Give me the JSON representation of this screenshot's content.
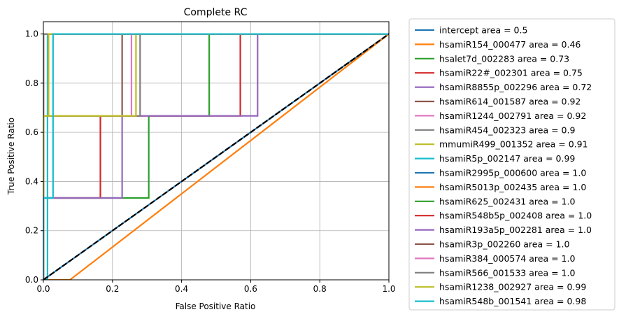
{
  "chart_data": {
    "type": "line",
    "title": "Complete RC",
    "xlabel": "False Positive Ratio",
    "ylabel": "True Positive Ratio",
    "xlim": [
      0,
      1
    ],
    "ylim": [
      0,
      1.05
    ],
    "xticks": [
      0,
      0.2,
      0.4,
      0.6,
      0.8,
      1
    ],
    "xtick_labels": [
      "0.0",
      "0.2",
      "0.4",
      "0.6",
      "0.8",
      "1.0"
    ],
    "yticks": [
      0,
      0.2,
      0.4,
      0.6,
      0.8,
      1
    ],
    "ytick_labels": [
      "0.0",
      "0.2",
      "0.4",
      "0.6",
      "0.8",
      "1.0"
    ],
    "grid": true,
    "legend_position": "outside-right",
    "series": [
      {
        "name": "intercept area = 0.5",
        "color": "#1f77b4",
        "x": [
          0,
          1
        ],
        "y": [
          0,
          1
        ]
      },
      {
        "name": "hsamiR154_000477 area = 0.46",
        "color": "#ff7f0e",
        "x": [
          0,
          0.077,
          1
        ],
        "y": [
          0,
          0,
          1
        ]
      },
      {
        "name": "hsalet7d_002283 area = 0.73",
        "color": "#2ca02c",
        "x": [
          0,
          0,
          0.305,
          0.305,
          0.48,
          0.48,
          1
        ],
        "y": [
          0,
          0.333,
          0.333,
          0.667,
          0.667,
          1,
          1
        ]
      },
      {
        "name": "hsamiR22#_002301 area = 0.75",
        "color": "#d62728",
        "x": [
          0,
          0,
          0.165,
          0.165,
          0.57,
          0.57,
          1
        ],
        "y": [
          0,
          0.333,
          0.333,
          0.667,
          0.667,
          1,
          1
        ]
      },
      {
        "name": "hsamiR8855p_002296 area = 0.72",
        "color": "#9467bd",
        "x": [
          0,
          0,
          0.228,
          0.228,
          0.62,
          0.62,
          1
        ],
        "y": [
          0,
          0.333,
          0.333,
          0.667,
          0.667,
          1,
          1
        ]
      },
      {
        "name": "hsamiR614_001587 area = 0.92",
        "color": "#8c564b",
        "x": [
          0,
          0,
          0.228,
          0.228,
          1
        ],
        "y": [
          0,
          0.667,
          0.667,
          1,
          1
        ]
      },
      {
        "name": "hsamiR1244_002791 area = 0.92",
        "color": "#e377c2",
        "x": [
          0,
          0,
          0.255,
          0.255,
          1
        ],
        "y": [
          0,
          0.667,
          0.667,
          1,
          1
        ]
      },
      {
        "name": "hsamiR454_002323 area = 0.9",
        "color": "#7f7f7f",
        "x": [
          0,
          0,
          0.28,
          0.28,
          1
        ],
        "y": [
          0,
          0.667,
          0.667,
          1,
          1
        ]
      },
      {
        "name": "mmumiR499_001352 area = 0.91",
        "color": "#bcbd22",
        "x": [
          0,
          0,
          0.268,
          0.268,
          1
        ],
        "y": [
          0,
          0.667,
          0.667,
          1,
          1
        ]
      },
      {
        "name": "hsamiR5p_002147 area = 0.99",
        "color": "#17becf",
        "x": [
          0,
          0.012,
          0.012,
          1
        ],
        "y": [
          0,
          0,
          1,
          1
        ]
      },
      {
        "name": "hsamiR2995p_000600 area = 1.0",
        "color": "#1f77b4",
        "x": [
          0,
          0,
          1
        ],
        "y": [
          0,
          1,
          1
        ]
      },
      {
        "name": "hsamiR5013p_002435 area = 1.0",
        "color": "#ff7f0e",
        "x": [
          0,
          0,
          1
        ],
        "y": [
          0,
          1,
          1
        ]
      },
      {
        "name": "hsamiR625_002431 area = 1.0",
        "color": "#2ca02c",
        "x": [
          0,
          0,
          1
        ],
        "y": [
          0,
          1,
          1
        ]
      },
      {
        "name": "hsamiR548b5p_002408 area = 1.0",
        "color": "#d62728",
        "x": [
          0,
          0,
          1
        ],
        "y": [
          0,
          1,
          1
        ]
      },
      {
        "name": "hsamiR193a5p_002281 area = 1.0",
        "color": "#9467bd",
        "x": [
          0,
          0,
          1
        ],
        "y": [
          0,
          1,
          1
        ]
      },
      {
        "name": "hsamiR3p_002260 area = 1.0",
        "color": "#8c564b",
        "x": [
          0,
          0,
          1
        ],
        "y": [
          0,
          1,
          1
        ]
      },
      {
        "name": "hsamiR384_000574 area = 1.0",
        "color": "#e377c2",
        "x": [
          0,
          0,
          1
        ],
        "y": [
          0,
          1,
          1
        ]
      },
      {
        "name": "hsamiR566_001533 area = 1.0",
        "color": "#7f7f7f",
        "x": [
          0,
          0,
          1
        ],
        "y": [
          0,
          1,
          1
        ]
      },
      {
        "name": "hsamiR1238_002927 area = 0.99",
        "color": "#bcbd22",
        "x": [
          0,
          0,
          0.015,
          0.015,
          1
        ],
        "y": [
          0,
          0.667,
          0.667,
          1,
          1
        ]
      },
      {
        "name": "hsamiR548b_001541 area = 0.98",
        "color": "#17becf",
        "x": [
          0,
          0,
          0.028,
          0.028,
          1
        ],
        "y": [
          0,
          0.333,
          0.333,
          1,
          1
        ]
      }
    ],
    "diagonal": {
      "color": "#000000",
      "style": "dashed",
      "x": [
        0,
        1
      ],
      "y": [
        0,
        1
      ]
    }
  }
}
